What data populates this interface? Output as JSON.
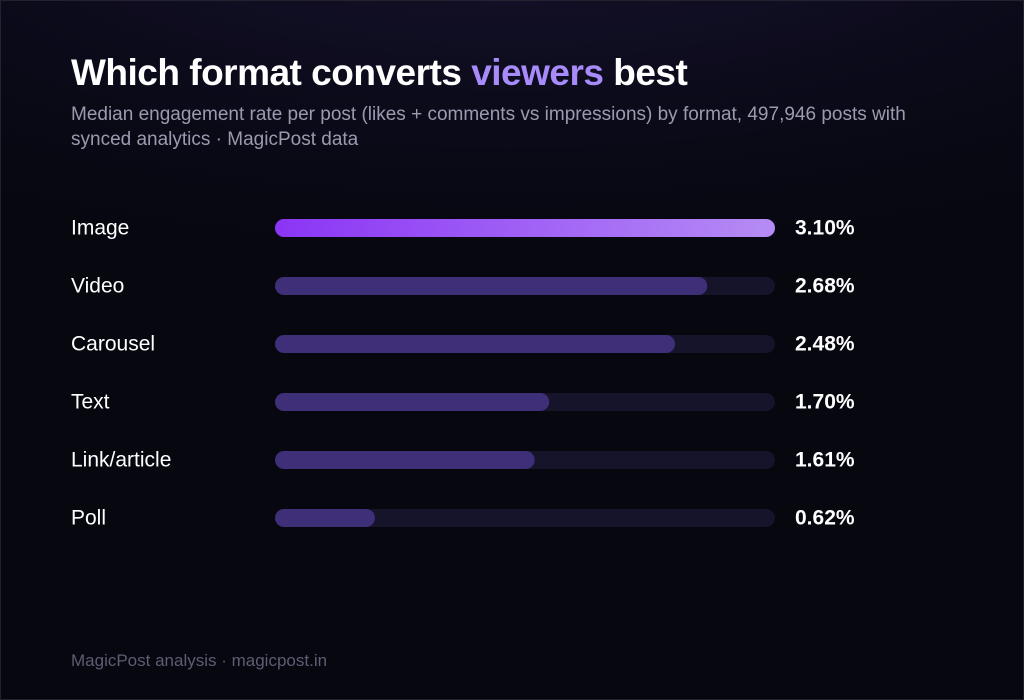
{
  "title": {
    "prefix": "Which format converts ",
    "highlight": "viewers",
    "suffix": " best"
  },
  "subtitle": "Median engagement rate per post (likes + comments vs impressions) by format, 497,946 posts with synced analytics · MagicPost data",
  "footer": "MagicPost analysis · magicpost.in",
  "colors": {
    "accent": "#a78bfa",
    "top_bar_start": "#8b35f5",
    "top_bar_end": "#b58cf5",
    "bar": "#3f2e78",
    "track": "#15142a",
    "background": "#05060f"
  },
  "chart_data": {
    "type": "bar",
    "orientation": "horizontal",
    "categories": [
      "Image",
      "Video",
      "Carousel",
      "Text",
      "Link/article",
      "Poll"
    ],
    "values": [
      3.1,
      2.68,
      2.48,
      1.7,
      1.61,
      0.62
    ],
    "value_labels": [
      "3.10%",
      "2.68%",
      "2.48%",
      "1.70%",
      "1.61%",
      "0.62%"
    ],
    "unit": "%",
    "xlim": [
      0,
      3.1
    ],
    "highlighted_category": "Image",
    "grid": false,
    "legend": "none"
  }
}
